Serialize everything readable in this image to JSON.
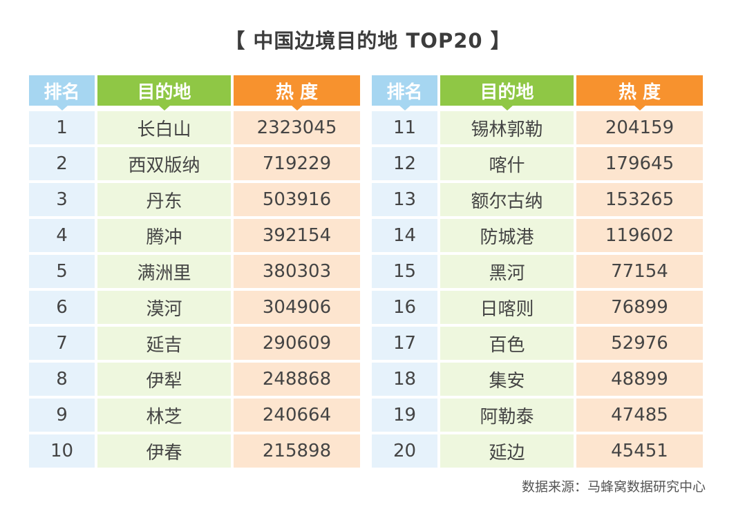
{
  "title": "【 中国边境目的地 TOP20 】",
  "source": "数据来源：马蜂窝数据研究中心",
  "colors": {
    "rank_header": "#a6d6f1",
    "dest_header": "#8fc745",
    "heat_header": "#f7922e",
    "rank_cell": "#e6f2fb",
    "dest_cell": "#eef7de",
    "heat_cell": "#fde5cf"
  },
  "chart_data": {
    "type": "table",
    "title": "【 中国边境目的地 TOP20 】",
    "columns": [
      "排名",
      "目的地",
      "热  度"
    ],
    "rows": [
      [
        1,
        "长白山",
        2323045
      ],
      [
        2,
        "西双版纳",
        719229
      ],
      [
        3,
        "丹东",
        503916
      ],
      [
        4,
        "腾冲",
        392154
      ],
      [
        5,
        "满洲里",
        380303
      ],
      [
        6,
        "漠河",
        304906
      ],
      [
        7,
        "延吉",
        290609
      ],
      [
        8,
        "伊犁",
        248868
      ],
      [
        9,
        "林芝",
        240664
      ],
      [
        10,
        "伊春",
        215898
      ],
      [
        11,
        "锡林郭勒",
        204159
      ],
      [
        12,
        "喀什",
        179645
      ],
      [
        13,
        "额尔古纳",
        153265
      ],
      [
        14,
        "防城港",
        119602
      ],
      [
        15,
        "黑河",
        77154
      ],
      [
        16,
        "日喀则",
        76899
      ],
      [
        17,
        "百色",
        52976
      ],
      [
        18,
        "集安",
        48899
      ],
      [
        19,
        "阿勒泰",
        47485
      ],
      [
        20,
        "延边",
        45451
      ]
    ]
  }
}
